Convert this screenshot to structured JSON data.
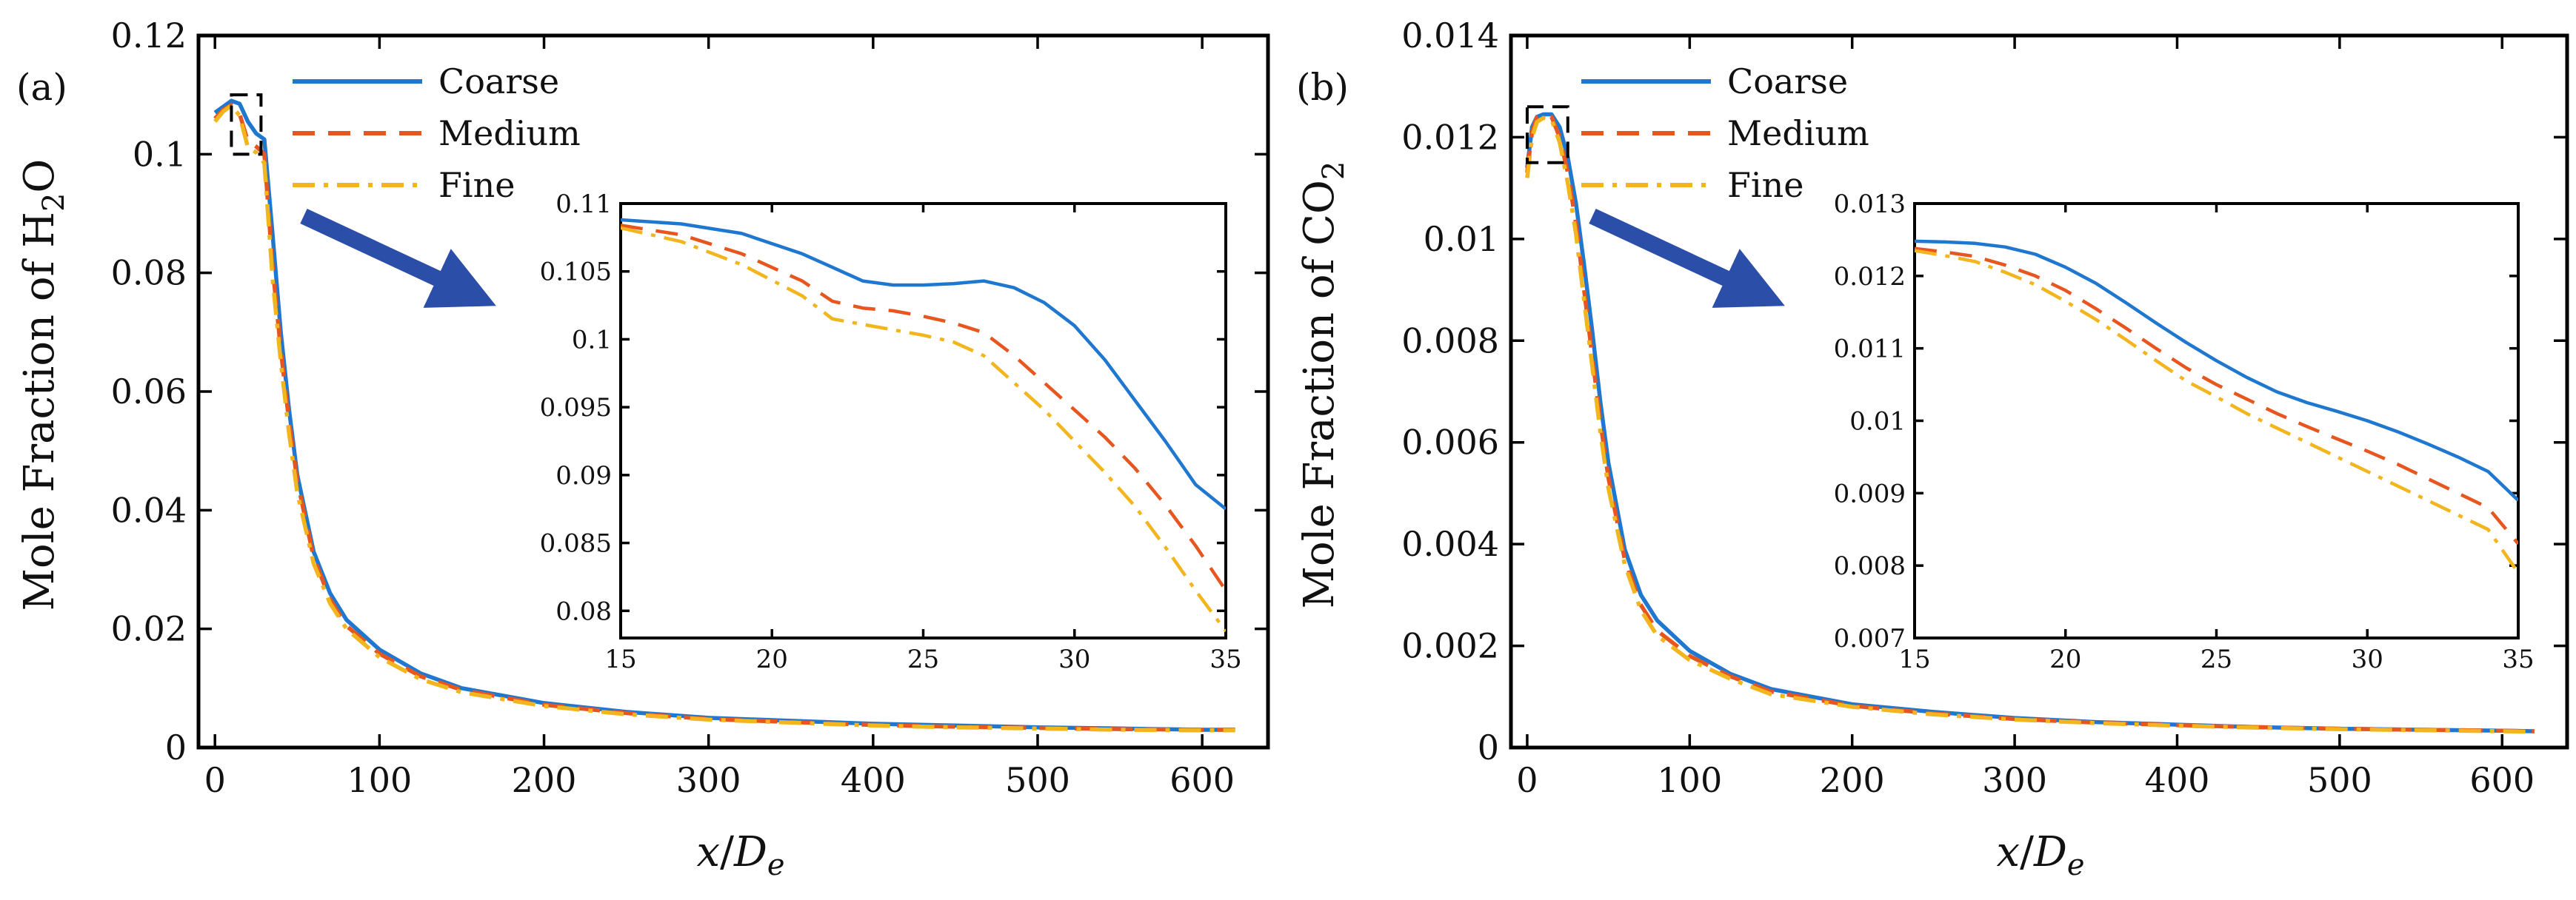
{
  "colors": {
    "coarse": "#1f77d0",
    "medium": "#e8561f",
    "fine": "#f2b51e",
    "arrow": "#2b4fa8"
  },
  "chart_data": [
    {
      "type": "line",
      "panel_label": "(a)",
      "xlabel_var": "x",
      "xlabel_den": "D",
      "xlabel_sub": "e",
      "ylabel_main": "Mole Fraction of H",
      "ylabel_sub": "2",
      "ylabel_tail": "O",
      "xlim": [
        -10,
        640
      ],
      "ylim": [
        0,
        0.12
      ],
      "xticks": [
        0,
        100,
        200,
        300,
        400,
        500,
        600
      ],
      "xtick_labels": [
        "0",
        "100",
        "200",
        "300",
        "400",
        "500",
        "600"
      ],
      "yticks": [
        0,
        0.02,
        0.04,
        0.06,
        0.08,
        0.1,
        0.12
      ],
      "ytick_labels": [
        "0",
        "0.02",
        "0.04",
        "0.06",
        "0.08",
        "0.1",
        "0.12"
      ],
      "legend": [
        "Coarse",
        "Medium",
        "Fine"
      ],
      "legend_position": "top-left",
      "series": [
        {
          "name": "Coarse",
          "x": [
            0,
            5,
            10,
            15,
            20,
            25,
            30,
            35,
            40,
            45,
            50,
            60,
            70,
            80,
            100,
            125,
            150,
            200,
            250,
            300,
            350,
            400,
            450,
            500,
            550,
            600,
            620
          ],
          "y": [
            0.107,
            0.108,
            0.109,
            0.1085,
            0.1055,
            0.1035,
            0.1025,
            0.0865,
            0.07,
            0.057,
            0.046,
            0.033,
            0.026,
            0.0215,
            0.0165,
            0.0125,
            0.01,
            0.0075,
            0.006,
            0.005,
            0.0045,
            0.004,
            0.0037,
            0.0034,
            0.0032,
            0.003,
            0.003
          ]
        },
        {
          "name": "Medium",
          "x": [
            0,
            5,
            10,
            15,
            20,
            25,
            30,
            35,
            40,
            45,
            50,
            60,
            70,
            80,
            100,
            125,
            150,
            200,
            250,
            300,
            350,
            400,
            450,
            500,
            550,
            600,
            620
          ],
          "y": [
            0.106,
            0.1075,
            0.1083,
            0.1068,
            0.1022,
            0.1013,
            0.1,
            0.081,
            0.067,
            0.055,
            0.045,
            0.032,
            0.025,
            0.0205,
            0.0158,
            0.012,
            0.0097,
            0.0072,
            0.0058,
            0.0048,
            0.0043,
            0.0038,
            0.0035,
            0.0033,
            0.0031,
            0.003,
            0.003
          ]
        },
        {
          "name": "Fine",
          "x": [
            0,
            5,
            10,
            15,
            20,
            25,
            30,
            35,
            40,
            45,
            50,
            60,
            70,
            80,
            100,
            125,
            150,
            200,
            250,
            300,
            350,
            400,
            450,
            500,
            550,
            600,
            620
          ],
          "y": [
            0.1055,
            0.1072,
            0.1082,
            0.1065,
            0.1012,
            0.1003,
            0.0985,
            0.079,
            0.065,
            0.053,
            0.043,
            0.031,
            0.0243,
            0.02,
            0.0152,
            0.0115,
            0.0093,
            0.007,
            0.0056,
            0.0047,
            0.0042,
            0.0037,
            0.0034,
            0.0032,
            0.003,
            0.0029,
            0.0029
          ]
        }
      ],
      "inset": {
        "xlim": [
          15,
          35
        ],
        "ylim": [
          0.078,
          0.11
        ],
        "xticks": [
          15,
          20,
          25,
          30,
          35
        ],
        "xtick_labels": [
          "15",
          "20",
          "25",
          "30",
          "35"
        ],
        "yticks": [
          0.08,
          0.085,
          0.09,
          0.095,
          0.1,
          0.105,
          0.11
        ],
        "ytick_labels": [
          "0.08",
          "0.085",
          "0.09",
          "0.095",
          "0.1",
          "0.105",
          "0.11"
        ],
        "zoom_box": {
          "x": [
            10,
            28
          ],
          "y": [
            0.1,
            0.11
          ]
        },
        "series": [
          {
            "name": "Coarse",
            "x": [
              15,
              17,
              19,
              21,
              22,
              23,
              24,
              25,
              26,
              27,
              28,
              29,
              30,
              31,
              32,
              33,
              34,
              35
            ],
            "y": [
              0.1088,
              0.1085,
              0.1078,
              0.1063,
              0.1053,
              0.1043,
              0.104,
              0.104,
              0.1041,
              0.1043,
              0.1038,
              0.1027,
              0.101,
              0.0985,
              0.0955,
              0.0925,
              0.0893,
              0.0875
            ]
          },
          {
            "name": "Medium",
            "x": [
              15,
              17,
              19,
              21,
              22,
              23,
              24,
              25,
              26,
              27,
              28,
              29,
              30,
              31,
              32,
              33,
              34,
              35
            ],
            "y": [
              0.1084,
              0.1077,
              0.1063,
              0.1043,
              0.1028,
              0.1023,
              0.1021,
              0.1017,
              0.1012,
              0.1005,
              0.0988,
              0.0968,
              0.0948,
              0.0928,
              0.0905,
              0.0878,
              0.0848,
              0.0815
            ]
          },
          {
            "name": "Fine",
            "x": [
              15,
              17,
              19,
              21,
              22,
              23,
              24,
              25,
              26,
              27,
              28,
              29,
              30,
              31,
              32,
              33,
              34,
              35
            ],
            "y": [
              0.1082,
              0.1072,
              0.1055,
              0.1032,
              0.1015,
              0.1011,
              0.1007,
              0.1003,
              0.0998,
              0.0988,
              0.0968,
              0.0948,
              0.0925,
              0.0902,
              0.0877,
              0.0847,
              0.0815,
              0.0785
            ]
          }
        ]
      }
    },
    {
      "type": "line",
      "panel_label": "(b)",
      "xlabel_var": "x",
      "xlabel_den": "D",
      "xlabel_sub": "e",
      "ylabel_main": "Mole Fraction of CO",
      "ylabel_sub": "2",
      "ylabel_tail": "",
      "xlim": [
        -10,
        640
      ],
      "ylim": [
        0,
        0.014
      ],
      "xticks": [
        0,
        100,
        200,
        300,
        400,
        500,
        600
      ],
      "xtick_labels": [
        "0",
        "100",
        "200",
        "300",
        "400",
        "500",
        "600"
      ],
      "yticks": [
        0,
        0.002,
        0.004,
        0.006,
        0.008,
        0.01,
        0.012,
        0.014
      ],
      "ytick_labels": [
        "0",
        "0.002",
        "0.004",
        "0.006",
        "0.008",
        "0.01",
        "0.012",
        "0.014"
      ],
      "legend": [
        "Coarse",
        "Medium",
        "Fine"
      ],
      "legend_position": "top-left",
      "series": [
        {
          "name": "Coarse",
          "x": [
            0,
            3,
            6,
            10,
            15,
            20,
            25,
            30,
            35,
            40,
            45,
            50,
            60,
            70,
            80,
            100,
            125,
            150,
            200,
            250,
            300,
            350,
            400,
            450,
            500,
            550,
            600,
            620
          ],
          "y": [
            0.0114,
            0.0122,
            0.0124,
            0.01245,
            0.01245,
            0.0122,
            0.0116,
            0.0107,
            0.0095,
            0.0082,
            0.0068,
            0.0056,
            0.0039,
            0.003,
            0.0025,
            0.0019,
            0.00145,
            0.00115,
            0.00085,
            0.0007,
            0.00058,
            0.0005,
            0.00045,
            0.0004,
            0.00037,
            0.00035,
            0.00033,
            0.00032
          ]
        },
        {
          "name": "Medium",
          "x": [
            0,
            3,
            6,
            10,
            15,
            20,
            25,
            30,
            35,
            40,
            45,
            50,
            60,
            70,
            80,
            100,
            125,
            150,
            200,
            250,
            300,
            350,
            400,
            450,
            500,
            550,
            600,
            620
          ],
          "y": [
            0.0113,
            0.0121,
            0.0124,
            0.01242,
            0.0124,
            0.012,
            0.0113,
            0.0103,
            0.009,
            0.0077,
            0.0064,
            0.0053,
            0.0037,
            0.0028,
            0.0023,
            0.0018,
            0.0014,
            0.0011,
            0.00082,
            0.00067,
            0.00056,
            0.00049,
            0.00044,
            0.0004,
            0.00037,
            0.00035,
            0.00033,
            0.00032
          ]
        },
        {
          "name": "Fine",
          "x": [
            0,
            3,
            6,
            10,
            15,
            20,
            25,
            30,
            35,
            40,
            45,
            50,
            60,
            70,
            80,
            100,
            125,
            150,
            200,
            250,
            300,
            350,
            400,
            450,
            500,
            550,
            600,
            620
          ],
          "y": [
            0.0112,
            0.012,
            0.0123,
            0.01238,
            0.01235,
            0.0119,
            0.0111,
            0.0101,
            0.0088,
            0.0075,
            0.0062,
            0.0051,
            0.0036,
            0.0027,
            0.0022,
            0.00172,
            0.00135,
            0.00105,
            0.0008,
            0.00065,
            0.00055,
            0.00048,
            0.00043,
            0.00039,
            0.00036,
            0.00034,
            0.00032,
            0.00031
          ]
        }
      ],
      "inset": {
        "xlim": [
          15,
          35
        ],
        "ylim": [
          0.007,
          0.013
        ],
        "xticks": [
          15,
          20,
          25,
          30,
          35
        ],
        "xtick_labels": [
          "15",
          "20",
          "25",
          "30",
          "35"
        ],
        "yticks": [
          0.007,
          0.008,
          0.009,
          0.01,
          0.011,
          0.012,
          0.013
        ],
        "ytick_labels": [
          "0.007",
          "0.008",
          "0.009",
          "0.01",
          "0.011",
          "0.012",
          "0.013"
        ],
        "zoom_box": {
          "x": [
            0,
            25
          ],
          "y": [
            0.0115,
            0.0126
          ]
        },
        "series": [
          {
            "name": "Coarse",
            "x": [
              15,
              16,
              17,
              18,
              19,
              20,
              21,
              22,
              23,
              24,
              25,
              26,
              27,
              28,
              29,
              30,
              31,
              32,
              33,
              34,
              35
            ],
            "y": [
              0.01248,
              0.01247,
              0.01245,
              0.0124,
              0.0123,
              0.01212,
              0.0119,
              0.01163,
              0.01135,
              0.01108,
              0.01083,
              0.0106,
              0.0104,
              0.01025,
              0.01013,
              0.01,
              0.00985,
              0.00968,
              0.0095,
              0.0093,
              0.0089
            ]
          },
          {
            "name": "Medium",
            "x": [
              15,
              16,
              17,
              18,
              19,
              20,
              21,
              22,
              23,
              24,
              25,
              26,
              27,
              28,
              29,
              30,
              31,
              32,
              33,
              34,
              35
            ],
            "y": [
              0.01238,
              0.01233,
              0.01227,
              0.01215,
              0.012,
              0.0118,
              0.01155,
              0.01128,
              0.011,
              0.01073,
              0.0105,
              0.0103,
              0.0101,
              0.00992,
              0.00975,
              0.00958,
              0.0094,
              0.0092,
              0.009,
              0.0088,
              0.0083
            ]
          },
          {
            "name": "Fine",
            "x": [
              15,
              16,
              17,
              18,
              19,
              20,
              21,
              22,
              23,
              24,
              25,
              26,
              27,
              28,
              29,
              30,
              31,
              32,
              33,
              34,
              35
            ],
            "y": [
              0.01235,
              0.01228,
              0.0122,
              0.01205,
              0.01188,
              0.01165,
              0.0114,
              0.01112,
              0.01083,
              0.01055,
              0.01033,
              0.0101,
              0.0099,
              0.0097,
              0.0095,
              0.0093,
              0.0091,
              0.0089,
              0.0087,
              0.0085,
              0.0079
            ]
          }
        ]
      }
    }
  ]
}
